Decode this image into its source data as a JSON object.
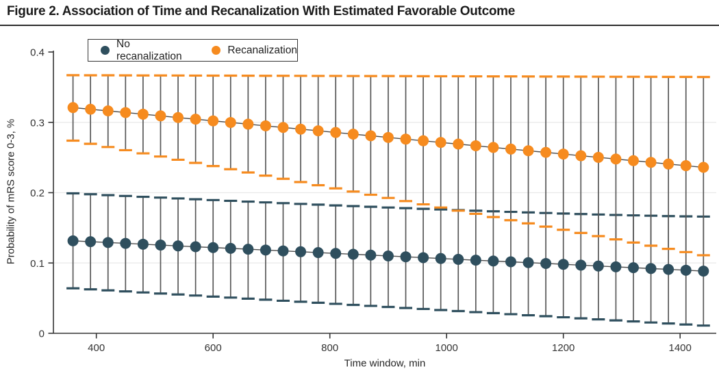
{
  "figure": {
    "title": "Figure 2. Association of Time and Recanalization With Estimated Favorable Outcome"
  },
  "chart_data": {
    "type": "scatter",
    "title": "",
    "xlabel": "Time window, min",
    "ylabel": "Probability of mRS score 0-3, %",
    "xlim": [
      330,
      1470
    ],
    "ylim": [
      0,
      0.4
    ],
    "x_ticks": [
      400,
      600,
      800,
      1000,
      1200,
      1400
    ],
    "y_ticks": [
      0,
      0.1,
      0.2,
      0.3,
      0.4
    ],
    "grid": "horizontal-light",
    "legend_position": "top-left-inside",
    "x": [
      360,
      390,
      420,
      450,
      480,
      510,
      540,
      570,
      600,
      630,
      660,
      690,
      720,
      750,
      780,
      810,
      840,
      870,
      900,
      930,
      960,
      990,
      1020,
      1050,
      1080,
      1110,
      1140,
      1170,
      1200,
      1230,
      1260,
      1290,
      1320,
      1350,
      1380,
      1410,
      1440
    ],
    "series": [
      {
        "name": "No recanalization",
        "color": "#2F4F5E",
        "values": [
          0.1315,
          0.1303,
          0.1291,
          0.1279,
          0.1267,
          0.1255,
          0.1243,
          0.1231,
          0.1219,
          0.1208,
          0.1196,
          0.1184,
          0.1172,
          0.116,
          0.1148,
          0.1136,
          0.1124,
          0.1112,
          0.11,
          0.1088,
          0.1076,
          0.1064,
          0.1052,
          0.104,
          0.1028,
          0.1017,
          0.1005,
          0.0993,
          0.0981,
          0.0969,
          0.0957,
          0.0945,
          0.0933,
          0.0921,
          0.0909,
          0.0897,
          0.0885
        ],
        "ci_upper": [
          0.199,
          0.1978,
          0.1965,
          0.1953,
          0.1941,
          0.193,
          0.1918,
          0.1906,
          0.1895,
          0.1884,
          0.1873,
          0.1862,
          0.1851,
          0.184,
          0.183,
          0.1819,
          0.1809,
          0.1799,
          0.1789,
          0.178,
          0.177,
          0.1761,
          0.1752,
          0.1743,
          0.1735,
          0.1727,
          0.1719,
          0.1711,
          0.1703,
          0.1696,
          0.1689,
          0.1683,
          0.1677,
          0.1672,
          0.1667,
          0.1663,
          0.166
        ],
        "ci_lower": [
          0.064,
          0.0625,
          0.0611,
          0.0596,
          0.0581,
          0.0566,
          0.0552,
          0.0537,
          0.0522,
          0.0508,
          0.0493,
          0.0478,
          0.0463,
          0.0449,
          0.0434,
          0.0419,
          0.0404,
          0.039,
          0.0375,
          0.036,
          0.0346,
          0.0331,
          0.0316,
          0.0301,
          0.0287,
          0.0272,
          0.0257,
          0.0243,
          0.0228,
          0.0213,
          0.0198,
          0.0184,
          0.0169,
          0.0154,
          0.014,
          0.0125,
          0.011
        ]
      },
      {
        "name": "Recanalization",
        "color": "#F68B1F",
        "values": [
          0.321,
          0.3186,
          0.3163,
          0.3139,
          0.3116,
          0.3092,
          0.3068,
          0.3045,
          0.3021,
          0.2998,
          0.2974,
          0.295,
          0.2927,
          0.2903,
          0.288,
          0.2856,
          0.2832,
          0.2809,
          0.2785,
          0.2761,
          0.2738,
          0.2714,
          0.2691,
          0.2667,
          0.2643,
          0.262,
          0.2596,
          0.2573,
          0.2549,
          0.2525,
          0.2502,
          0.2478,
          0.2455,
          0.2431,
          0.2407,
          0.2384,
          0.236
        ],
        "ci_upper": [
          0.367,
          0.3669,
          0.3669,
          0.3668,
          0.3667,
          0.3667,
          0.3666,
          0.3665,
          0.3664,
          0.3664,
          0.3663,
          0.3662,
          0.3662,
          0.3661,
          0.366,
          0.366,
          0.3659,
          0.3658,
          0.3658,
          0.3657,
          0.3656,
          0.3655,
          0.3655,
          0.3654,
          0.3653,
          0.3653,
          0.3652,
          0.3651,
          0.3651,
          0.365,
          0.3649,
          0.3648,
          0.3648,
          0.3647,
          0.3646,
          0.3646,
          0.3645
        ],
        "ci_lower": [
          0.274,
          0.2695,
          0.2649,
          0.2604,
          0.2559,
          0.2514,
          0.2468,
          0.2423,
          0.2378,
          0.2333,
          0.2287,
          0.2242,
          0.2197,
          0.2151,
          0.2106,
          0.2061,
          0.2016,
          0.197,
          0.1925,
          0.188,
          0.1834,
          0.1789,
          0.1744,
          0.1699,
          0.1653,
          0.1608,
          0.1563,
          0.1517,
          0.1472,
          0.1427,
          0.1382,
          0.1336,
          0.1291,
          0.1246,
          0.1201,
          0.1155,
          0.111
        ]
      }
    ]
  },
  "styles": {
    "whisker_color": "#575757",
    "trend_line_color": "#4b4b4b",
    "grid_color": "#e9e9e9",
    "axis_color": "#333333",
    "title_rule_color": "#2a2a2a",
    "background": "#ffffff"
  }
}
